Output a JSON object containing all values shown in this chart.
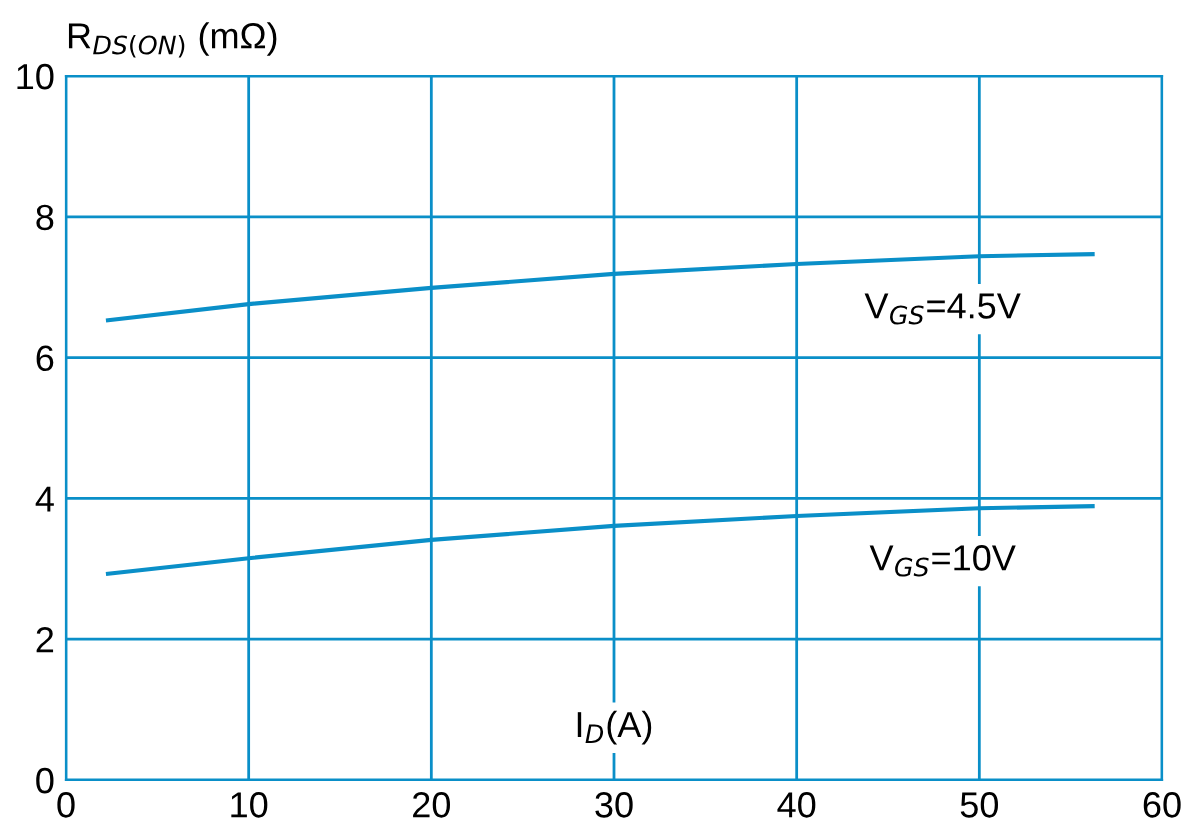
{
  "chart_data": {
    "type": "line",
    "ylabel": "R$_{DS(ON)}$ (mΩ)",
    "xlabel": "I$_{D}$(A)",
    "x": [
      2.3,
      10,
      20,
      30,
      40,
      50,
      56.2
    ],
    "series": [
      {
        "name": "V$_{GS}$=4.5V",
        "color": "#0a8fc8",
        "values": [
          6.53,
          6.76,
          6.99,
          7.19,
          7.33,
          7.44,
          7.47
        ]
      },
      {
        "name": "V$_{GS}$=10V",
        "color": "#0a8fc8",
        "values": [
          2.93,
          3.15,
          3.41,
          3.61,
          3.75,
          3.86,
          3.89
        ]
      }
    ],
    "xlim": [
      0,
      60
    ],
    "xticks": [
      0,
      10,
      20,
      30,
      40,
      50,
      60
    ],
    "ylim": [
      0,
      10
    ],
    "yticks": [
      0,
      2,
      4,
      6,
      8,
      10
    ],
    "grid": true,
    "legend": false
  }
}
